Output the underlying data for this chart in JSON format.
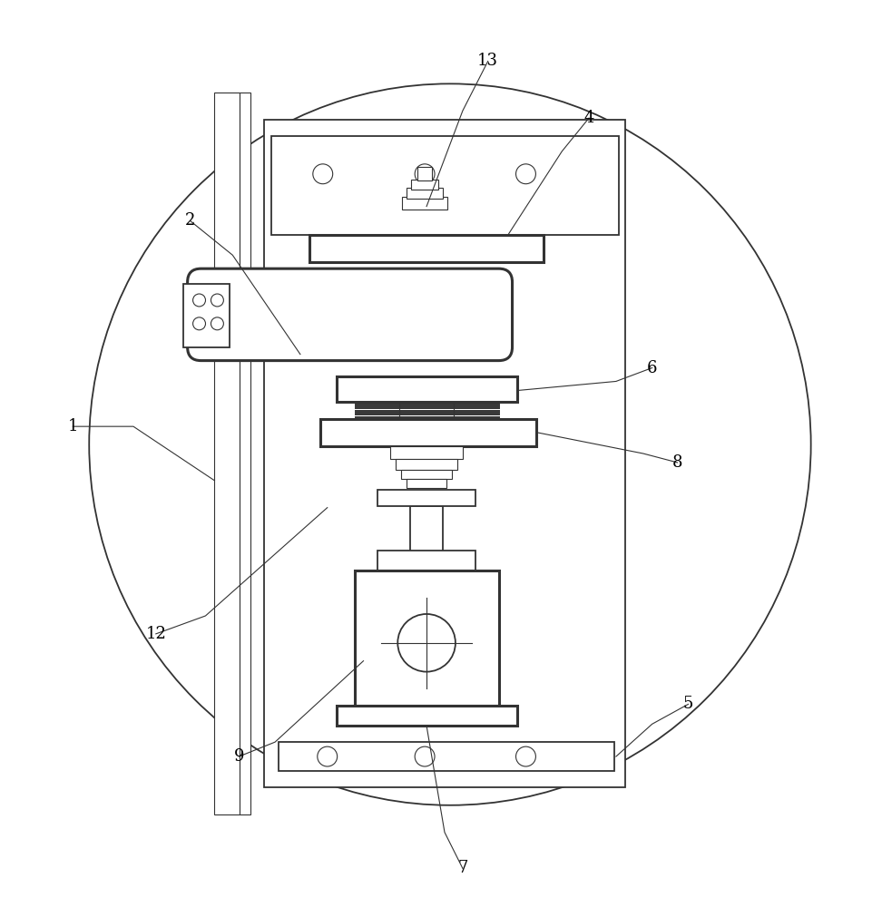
{
  "bg_color": "#ffffff",
  "line_color": "#333333",
  "label_color": "#000000",
  "fig_width": 9.72,
  "fig_height": 10.0,
  "dpi": 100,
  "label_fontsize": 13
}
